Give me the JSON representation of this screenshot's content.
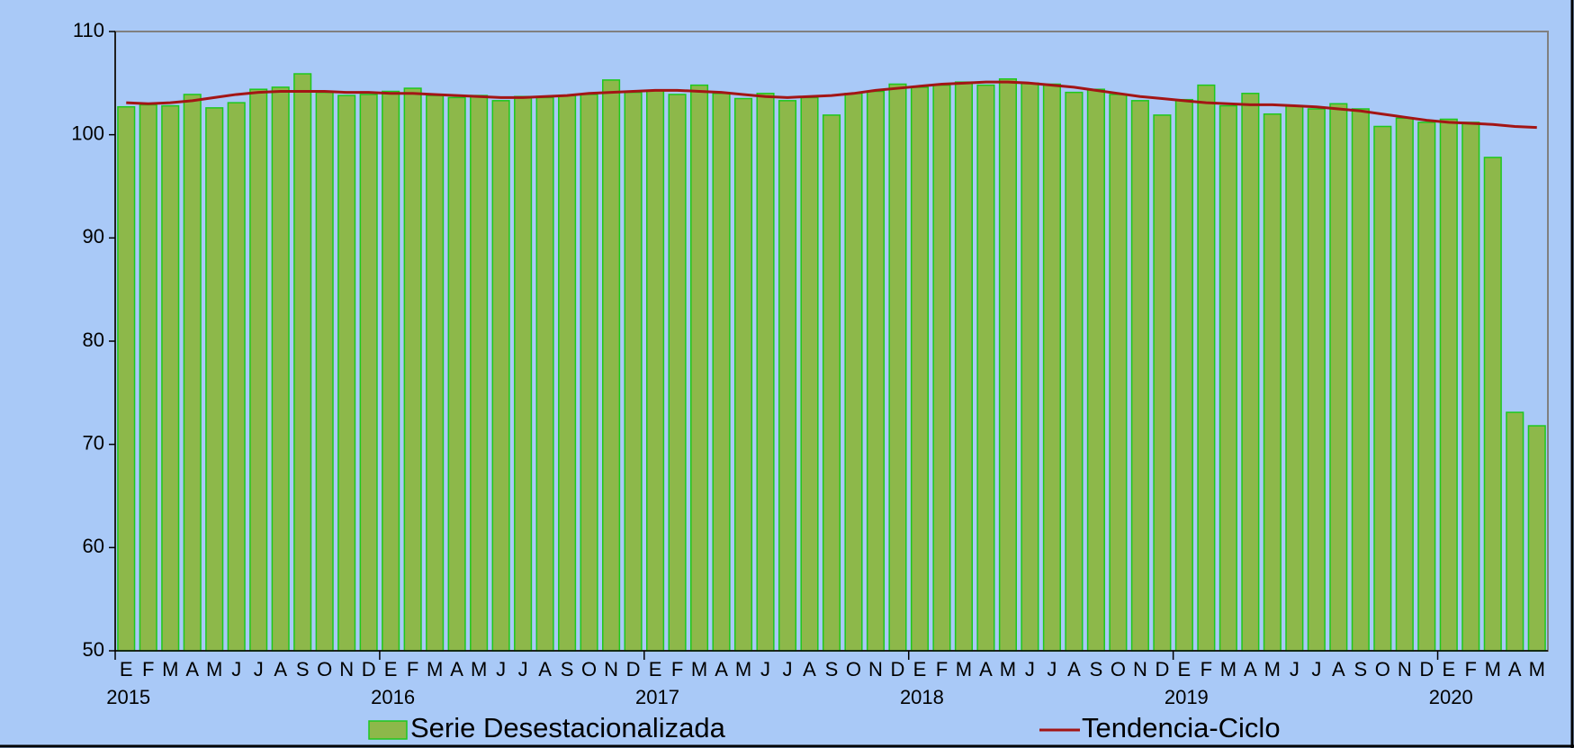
{
  "chart_data": {
    "type": "bar",
    "categories": [
      "E",
      "F",
      "M",
      "A",
      "M",
      "J",
      "J",
      "A",
      "S",
      "O",
      "N",
      "D",
      "E",
      "F",
      "M",
      "A",
      "M",
      "J",
      "J",
      "A",
      "S",
      "O",
      "N",
      "D",
      "E",
      "F",
      "M",
      "A",
      "M",
      "J",
      "J",
      "A",
      "S",
      "O",
      "N",
      "D",
      "E",
      "F",
      "M",
      "A",
      "M",
      "J",
      "J",
      "A",
      "S",
      "O",
      "N",
      "D",
      "E",
      "F",
      "M",
      "A",
      "M",
      "J",
      "J",
      "A",
      "S",
      "O",
      "N",
      "D",
      "E",
      "F",
      "M",
      "A",
      "M"
    ],
    "year_labels": [
      "2015",
      "2016",
      "2017",
      "2018",
      "2019",
      "2020"
    ],
    "series": [
      {
        "name": "Serie Desestacionalizada",
        "type": "bar",
        "color": "#8db84a",
        "values": [
          102.7,
          102.9,
          102.8,
          103.9,
          102.6,
          103.1,
          104.4,
          104.6,
          105.9,
          104.1,
          103.8,
          103.9,
          104.2,
          104.5,
          103.8,
          103.6,
          103.8,
          103.3,
          103.7,
          103.6,
          103.8,
          103.9,
          105.3,
          104.1,
          104.3,
          103.9,
          104.8,
          104.0,
          103.5,
          104.0,
          103.3,
          103.6,
          101.9,
          104.0,
          104.2,
          104.9,
          104.6,
          104.8,
          105.1,
          104.8,
          105.4,
          105.0,
          104.9,
          104.1,
          104.4,
          103.9,
          103.3,
          101.9,
          103.4,
          104.8,
          102.8,
          104.0,
          102.0,
          102.8,
          102.5,
          103.0,
          102.5,
          100.8,
          101.6,
          101.2,
          101.5,
          101.2,
          97.8,
          73.1,
          71.8
        ]
      },
      {
        "name": "Tendencia-Ciclo",
        "type": "line",
        "color": "#a31515",
        "values": [
          103.1,
          103.0,
          103.1,
          103.3,
          103.6,
          103.9,
          104.1,
          104.2,
          104.2,
          104.2,
          104.1,
          104.1,
          104.0,
          104.0,
          103.9,
          103.8,
          103.7,
          103.6,
          103.6,
          103.7,
          103.8,
          104.0,
          104.1,
          104.2,
          104.3,
          104.3,
          104.2,
          104.1,
          103.9,
          103.7,
          103.6,
          103.7,
          103.8,
          104.0,
          104.3,
          104.5,
          104.7,
          104.9,
          105.0,
          105.1,
          105.1,
          105.0,
          104.8,
          104.6,
          104.3,
          104.0,
          103.7,
          103.5,
          103.3,
          103.1,
          103.0,
          102.9,
          102.9,
          102.8,
          102.7,
          102.5,
          102.3,
          102.0,
          101.7,
          101.4,
          101.2,
          101.1,
          101.0,
          100.8,
          100.7
        ]
      }
    ],
    "ylim": [
      50,
      110
    ],
    "yticks": [
      50,
      60,
      70,
      80,
      90,
      100,
      110
    ]
  }
}
